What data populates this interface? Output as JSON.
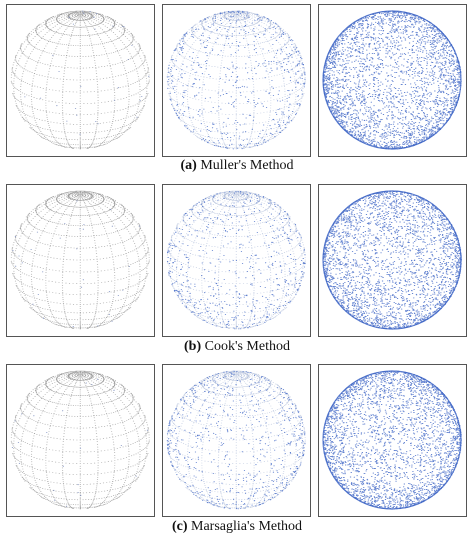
{
  "captions": [
    {
      "label": "(a)",
      "text": "Muller's Method"
    },
    {
      "label": "(b)",
      "text": "Cook's Method"
    },
    {
      "label": "(c)",
      "text": "Marsaglia's Method"
    }
  ]
}
